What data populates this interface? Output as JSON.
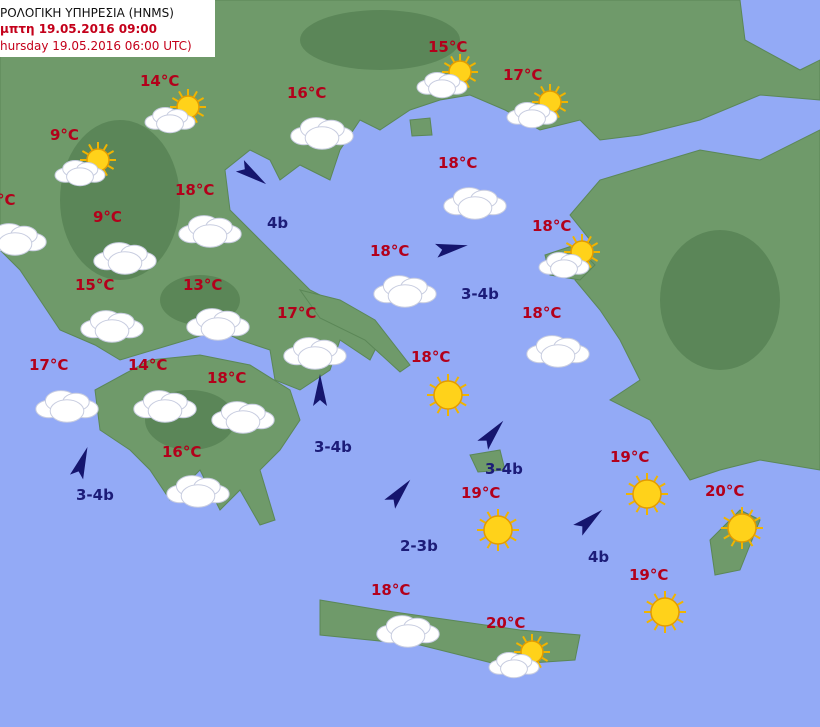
{
  "header": {
    "line1": "ΡΟΛΟΓΙΚΗ ΥΠΗΡΕΣΙΑ (HNMS)",
    "line2": "μπτη 19.05.2016 09:00",
    "line3": "hursday 19.05.2016 06:00 UTC)"
  },
  "temperatures": [
    "15°C",
    "17°C",
    "14°C",
    "16°C",
    "9°C",
    "18°C",
    "°C",
    "18°C",
    "9°C",
    "18°C",
    "18°C",
    "15°C",
    "13°C",
    "18°C",
    "17°C",
    "18°C",
    "17°C",
    "14°C",
    "18°C",
    "16°C",
    "19°C",
    "19°C",
    "20°C",
    "19°C",
    "18°C",
    "20°C"
  ],
  "winds": [
    "4b",
    "3-4b",
    "3-4b",
    "3-4b",
    "3-4b",
    "2-3b",
    "4b"
  ]
}
